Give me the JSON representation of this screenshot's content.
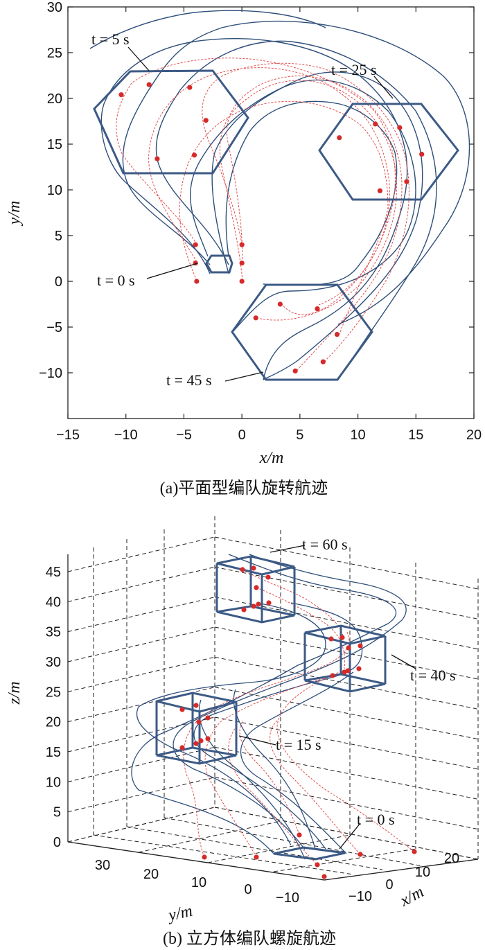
{
  "figure_a": {
    "caption": "(a)平面型编队旋转航迹",
    "xlabel": "x/m",
    "ylabel": "y/m",
    "annotations": [
      "t = 5 s",
      "t = 25 s",
      "t = 0 s",
      "t = 45 s"
    ]
  },
  "figure_b": {
    "caption": "(b) 立方体编队螺旋航迹",
    "zlabel": "z/m",
    "ylabel": "y/m",
    "xlabel": "x/m",
    "z_ticks": [
      "0",
      "5",
      "10",
      "15",
      "20",
      "25",
      "30",
      "35",
      "40",
      "45"
    ],
    "y_ticks": [
      "30",
      "20",
      "10",
      "0",
      "-10"
    ],
    "x_ticks": [
      "-10",
      "0",
      "10",
      "20"
    ],
    "annotations": [
      "t = 60 s",
      "t = 40 s",
      "t = 15 s",
      "t = 0 s"
    ]
  },
  "colors": {
    "formation": "#3c5a86",
    "trajectory_leader": "#2f4f7a",
    "trajectory_follower": "#e0504f",
    "agent": "#d62a2a"
  },
  "chart_data": [
    {
      "type": "scatter",
      "title": "(a)平面型编队旋转航迹",
      "xlabel": "x/m",
      "ylabel": "y/m",
      "xlim": [
        -15,
        20
      ],
      "ylim": [
        -15,
        30
      ],
      "x_ticks": [
        -15,
        -10,
        -5,
        0,
        5,
        10,
        15,
        20
      ],
      "y_ticks": [
        -10,
        -5,
        0,
        5,
        10,
        15,
        20,
        25,
        30
      ],
      "grid": false,
      "series": [
        {
          "name": "t = 0 s",
          "hexagon": [
            [
              -2.6,
              2.0
            ],
            [
              -0.9,
              2.0
            ],
            [
              -0.3,
              1.0
            ],
            [
              -0.9,
              0.9
            ],
            [
              -2.6,
              0.9
            ],
            [
              -3.3,
              1.4
            ]
          ],
          "agents": [
            [
              -4.0,
              4.0
            ],
            [
              -4.0,
              2.0
            ],
            [
              -3.9,
              0.0
            ],
            [
              0.0,
              4.0
            ],
            [
              0.0,
              2.0
            ],
            [
              0.0,
              0.0
            ]
          ]
        },
        {
          "name": "t = 5 s",
          "hexagon": [
            [
              -9.8,
              23.0
            ],
            [
              -3.2,
              23.0
            ],
            [
              0.5,
              18.5
            ],
            [
              -3.2,
              11.7
            ],
            [
              -9.8,
              11.7
            ],
            [
              -12.6,
              18.5
            ]
          ],
          "agents": [
            [
              -10.4,
              20.4
            ],
            [
              -8.0,
              21.5
            ],
            [
              -4.5,
              21.2
            ],
            [
              -3.1,
              17.6
            ],
            [
              -4.1,
              13.8
            ],
            [
              -7.3,
              13.4
            ]
          ]
        },
        {
          "name": "t = 25 s",
          "hexagon": [
            [
              9.9,
              19.2
            ],
            [
              15.0,
              19.2
            ],
            [
              18.3,
              14.0
            ],
            [
              15.0,
              8.9
            ],
            [
              9.9,
              8.9
            ],
            [
              6.5,
              14.0
            ]
          ],
          "agents": [
            [
              11.5,
              17.2
            ],
            [
              13.6,
              16.8
            ],
            [
              15.5,
              13.9
            ],
            [
              14.2,
              10.9
            ],
            [
              11.9,
              9.9
            ],
            [
              8.4,
              15.7
            ]
          ]
        },
        {
          "name": "t = 45 s",
          "hexagon": [
            [
              2.1,
              -0.5
            ],
            [
              8.2,
              -0.5
            ],
            [
              11.1,
              -5.8
            ],
            [
              8.2,
              -10.8
            ],
            [
              2.1,
              -10.8
            ],
            [
              -0.9,
              -5.8
            ]
          ],
          "agents": [
            [
              3.3,
              -2.5
            ],
            [
              6.5,
              -3.0
            ],
            [
              8.2,
              -5.8
            ],
            [
              7.0,
              -8.8
            ],
            [
              4.6,
              -9.8
            ],
            [
              1.2,
              -4.0
            ]
          ]
        }
      ]
    },
    {
      "type": "scatter",
      "title": "(b) 立方体编队螺旋航迹",
      "xlabel": "x/m",
      "ylabel": "y/m",
      "zlabel": "z/m",
      "zlim": [
        0,
        45
      ],
      "z_ticks": [
        0,
        5,
        10,
        15,
        20,
        25,
        30,
        35,
        40,
        45
      ],
      "y_ticks": [
        30,
        20,
        10,
        0,
        -10
      ],
      "x_ticks": [
        -10,
        0,
        10,
        20
      ],
      "grid": true,
      "series": [
        {
          "name": "t = 0 s",
          "z": 0
        },
        {
          "name": "t = 15 s",
          "z": 17
        },
        {
          "name": "t = 40 s",
          "z": 30
        },
        {
          "name": "t = 60 s",
          "z": 42
        }
      ]
    }
  ]
}
